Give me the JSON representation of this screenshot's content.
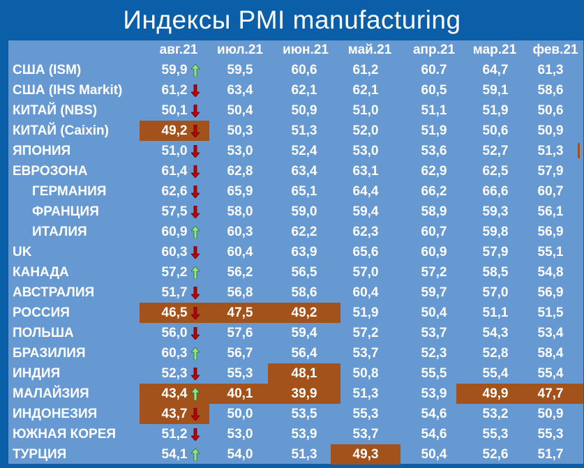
{
  "title": "Индексы PMI manufacturing",
  "colors": {
    "background": "#0b5fa8",
    "panel": "#6699d2",
    "highlight": "#a3521b",
    "arrow_up": "#8ee58e",
    "arrow_down": "#c00000"
  },
  "columns": [
    "авг.21",
    "июл.21",
    "июн.21",
    "май.21",
    "апр.21",
    "мар.21",
    "фев.21"
  ],
  "rows": [
    {
      "country": "США (ISM)",
      "indent": false,
      "values": [
        "59,9",
        "59,5",
        "60,6",
        "61,2",
        "60.7",
        "64,7",
        "61,3"
      ],
      "arrow": "up",
      "highlight": [
        false,
        false,
        false,
        false,
        false,
        false,
        false
      ]
    },
    {
      "country": "США (IHS Markit)",
      "indent": false,
      "values": [
        "61,2",
        "63,4",
        "62,1",
        "62,1",
        "60,5",
        "59,1",
        "58,6"
      ],
      "arrow": "down",
      "highlight": [
        false,
        false,
        false,
        false,
        false,
        false,
        false
      ]
    },
    {
      "country": "КИТАЙ (NBS)",
      "indent": false,
      "values": [
        "50,1",
        "50,4",
        "50,9",
        "51,0",
        "51,1",
        "51,9",
        "50,6"
      ],
      "arrow": "down",
      "highlight": [
        false,
        false,
        false,
        false,
        false,
        false,
        false
      ]
    },
    {
      "country": "КИТАЙ (Caixin)",
      "indent": false,
      "values": [
        "49,2",
        "50,3",
        "51,3",
        "52,0",
        "51,9",
        "50,6",
        "50,9"
      ],
      "arrow": "down",
      "highlight": [
        true,
        false,
        false,
        false,
        false,
        false,
        false
      ]
    },
    {
      "country": "ЯПОНИЯ",
      "indent": false,
      "values": [
        "51,0",
        "53,0",
        "52,4",
        "53,0",
        "53,6",
        "52,7",
        "51,3"
      ],
      "arrow": "down",
      "highlight": [
        false,
        false,
        false,
        false,
        false,
        false,
        false
      ],
      "edge_mark": true
    },
    {
      "country": "ЕВРОЗОНА",
      "indent": false,
      "values": [
        "61,4",
        "62,8",
        "63,4",
        "63,1",
        "62,9",
        "62,5",
        "57,9"
      ],
      "arrow": "down",
      "highlight": [
        false,
        false,
        false,
        false,
        false,
        false,
        false
      ]
    },
    {
      "country": "ГЕРМАНИЯ",
      "indent": true,
      "values": [
        "62,6",
        "65,9",
        "65,1",
        "64,4",
        "66,2",
        "66,6",
        "60,7"
      ],
      "arrow": "down",
      "highlight": [
        false,
        false,
        false,
        false,
        false,
        false,
        false
      ]
    },
    {
      "country": "ФРАНЦИЯ",
      "indent": true,
      "values": [
        "57,5",
        "58,0",
        "59,0",
        "59,4",
        "58,9",
        "59,3",
        "56,1"
      ],
      "arrow": "down",
      "highlight": [
        false,
        false,
        false,
        false,
        false,
        false,
        false
      ]
    },
    {
      "country": "ИТАЛИЯ",
      "indent": true,
      "values": [
        "60,9",
        "60,3",
        "62,2",
        "62,3",
        "60,7",
        "59,8",
        "56,9"
      ],
      "arrow": "up",
      "highlight": [
        false,
        false,
        false,
        false,
        false,
        false,
        false
      ]
    },
    {
      "country": "UK",
      "indent": false,
      "values": [
        "60,3",
        "60,4",
        "63,9",
        "65,6",
        "60,9",
        "57,9",
        "55,1"
      ],
      "arrow": "down",
      "highlight": [
        false,
        false,
        false,
        false,
        false,
        false,
        false
      ]
    },
    {
      "country": "КАНАДА",
      "indent": false,
      "values": [
        "57,2",
        "56,2",
        "56,5",
        "57,0",
        "57,2",
        "58,5",
        "54,8"
      ],
      "arrow": "up",
      "highlight": [
        false,
        false,
        false,
        false,
        false,
        false,
        false
      ]
    },
    {
      "country": "АВСТРАЛИЯ",
      "indent": false,
      "values": [
        "51,7",
        "56,8",
        "58,6",
        "60,4",
        "59,7",
        "57,0",
        "56,9"
      ],
      "arrow": "down",
      "highlight": [
        false,
        false,
        false,
        false,
        false,
        false,
        false
      ]
    },
    {
      "country": "РОССИЯ",
      "indent": false,
      "values": [
        "46,5",
        "47,5",
        "49,2",
        "51,9",
        "50,4",
        "51,1",
        "51,5"
      ],
      "arrow": "down",
      "highlight": [
        true,
        true,
        true,
        false,
        false,
        false,
        false
      ]
    },
    {
      "country": "ПОЛЬША",
      "indent": false,
      "values": [
        "56,0",
        "57,6",
        "59,4",
        "57,2",
        "53,7",
        "54,3",
        "53,4"
      ],
      "arrow": "down",
      "highlight": [
        false,
        false,
        false,
        false,
        false,
        false,
        false
      ]
    },
    {
      "country": "БРАЗИЛИЯ",
      "indent": false,
      "values": [
        "60,3",
        "56,7",
        "56,4",
        "53,7",
        "52,3",
        "52,8",
        "58,4"
      ],
      "arrow": "up",
      "highlight": [
        false,
        false,
        false,
        false,
        false,
        false,
        false
      ]
    },
    {
      "country": "ИНДИЯ",
      "indent": false,
      "values": [
        "52,3",
        "55,3",
        "48,1",
        "50,8",
        "55,5",
        "55,4",
        "55,4"
      ],
      "arrow": "down",
      "highlight": [
        false,
        false,
        true,
        false,
        false,
        false,
        false
      ]
    },
    {
      "country": "МАЛАЙЗИЯ",
      "indent": false,
      "values": [
        "43,4",
        "40,1",
        "39,9",
        "51,3",
        "53,9",
        "49,9",
        "47,7"
      ],
      "arrow": "up",
      "highlight": [
        true,
        true,
        true,
        false,
        false,
        true,
        true
      ]
    },
    {
      "country": "ИНДОНЕЗИЯ",
      "indent": false,
      "values": [
        "43,7",
        "50,0",
        "53,5",
        "55,3",
        "54,6",
        "53,2",
        "50,9"
      ],
      "arrow": "down",
      "highlight": [
        true,
        false,
        false,
        false,
        false,
        false,
        false
      ]
    },
    {
      "country": "ЮЖНАЯ КОРЕЯ",
      "indent": false,
      "values": [
        "51,2",
        "53,0",
        "53,9",
        "53,7",
        "54,6",
        "55,3",
        "55,3"
      ],
      "arrow": "down",
      "highlight": [
        false,
        false,
        false,
        false,
        false,
        false,
        false
      ]
    },
    {
      "country": "ТУРЦИЯ",
      "indent": false,
      "values": [
        "54,1",
        "54,0",
        "51,3",
        "49,3",
        "50,4",
        "52,6",
        "51,7"
      ],
      "arrow": "up",
      "highlight": [
        false,
        false,
        false,
        true,
        false,
        false,
        false
      ]
    }
  ]
}
